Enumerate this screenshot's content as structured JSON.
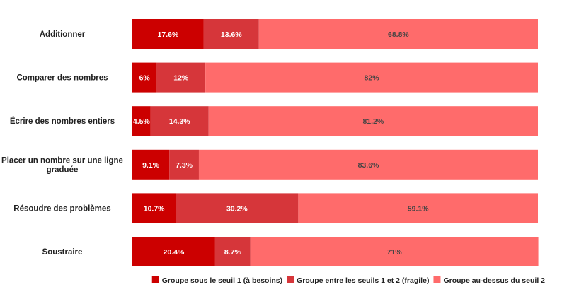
{
  "chart_data": {
    "type": "bar",
    "orientation": "horizontal",
    "stacked": true,
    "normalized": true,
    "categories": [
      "Additionner",
      "Comparer des nombres",
      "Écrire des nombres entiers",
      "Placer un nombre sur une ligne graduée",
      "Résoudre des problèmes",
      "Soustraire"
    ],
    "series": [
      {
        "name": "Groupe sous le seuil 1 (à besoins)",
        "color": "#cc0000",
        "label_color": "#ffffff",
        "values": [
          17.6,
          6,
          4.5,
          9.1,
          10.7,
          20.4
        ],
        "labels": [
          "17.6%",
          "6%",
          "4.5%",
          "9.1%",
          "10.7%",
          "20.4%"
        ]
      },
      {
        "name": "Groupe entre les seuils 1 et 2 (fragile)",
        "color": "#d6363a",
        "label_color": "#ffffff",
        "values": [
          13.6,
          12,
          14.3,
          7.3,
          30.2,
          8.7
        ],
        "labels": [
          "13.6%",
          "12%",
          "14.3%",
          "7.3%",
          "30.2%",
          "8.7%"
        ]
      },
      {
        "name": "Groupe au-dessus du seuil 2",
        "color": "#ff6b6b",
        "label_color": "#444444",
        "values": [
          68.8,
          82,
          81.2,
          83.6,
          59.1,
          71
        ],
        "labels": [
          "68.8%",
          "82%",
          "81.2%",
          "83.6%",
          "59.1%",
          "71%"
        ]
      }
    ],
    "xlim": [
      0,
      100
    ],
    "grid": false,
    "legend_position": "bottom-right",
    "title": "",
    "xlabel": "",
    "ylabel": ""
  }
}
